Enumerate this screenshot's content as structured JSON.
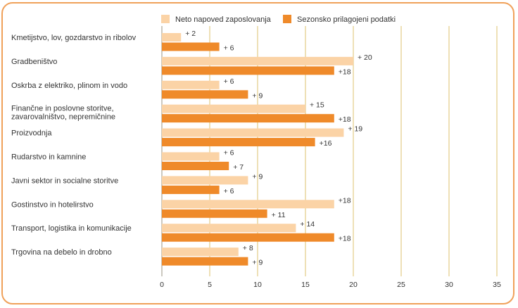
{
  "chart_data": {
    "type": "bar",
    "orientation": "horizontal",
    "categories": [
      [
        "Kmetijstvo, lov, gozdarstvo in ribolov"
      ],
      [
        "Gradbeništvo"
      ],
      [
        "Oskrba z elektriko, plinom in vodo"
      ],
      [
        "Finančne in poslovne storitve,",
        "zavarovalništvo, nepremičnine"
      ],
      [
        "Proizvodnja"
      ],
      [
        "Rudarstvo in kamnine"
      ],
      [
        "Javni sektor in socialne storitve"
      ],
      [
        "Gostinstvo in hotelirstvo"
      ],
      [
        "Transport, logistika in komunikacije"
      ],
      [
        "Trgovina na debelo in drobno"
      ]
    ],
    "series": [
      {
        "name": "Neto napoved zaposlovanja",
        "color": "#fbd3a6",
        "values": [
          2,
          20,
          6,
          15,
          19,
          6,
          9,
          18,
          14,
          8
        ],
        "labels": [
          "+ 2",
          "+ 20",
          "+ 6",
          "+ 15",
          "+ 19",
          "+ 6",
          "+ 9",
          "+18",
          "+ 14",
          "+ 8"
        ]
      },
      {
        "name": "Sezonsko prilagojeni podatki",
        "color": "#ef8a2a",
        "values": [
          6,
          18,
          9,
          18,
          16,
          7,
          6,
          11,
          18,
          9
        ],
        "labels": [
          "+ 6",
          "+18",
          "+ 9",
          "+18",
          "+16",
          "+ 7",
          "+ 6",
          "+ 11",
          "+18",
          "+ 9"
        ]
      }
    ],
    "xlim": [
      0,
      35
    ],
    "xticks": [
      0,
      5,
      10,
      15,
      20,
      25,
      30,
      35
    ],
    "grid": "vertical",
    "grid_color": "#d4b24a",
    "legend_position": "top-right",
    "frame_color": "#f0a15a"
  }
}
